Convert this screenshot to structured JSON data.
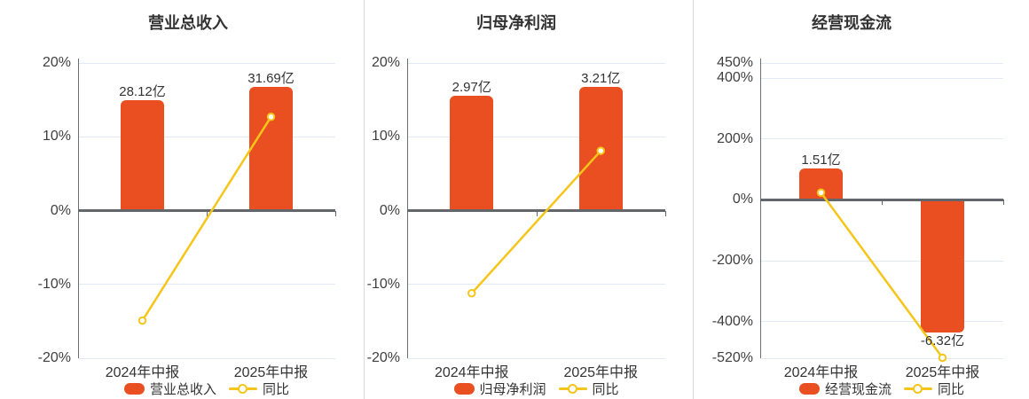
{
  "chart_data": [
    {
      "type": "bar+line",
      "title": "营业总收入",
      "categories": [
        "2024年中报",
        "2025年中报"
      ],
      "series": [
        {
          "name": "营业总收入",
          "type": "bar",
          "unit": "亿",
          "values": [
            28.12,
            31.69
          ],
          "labels": [
            "28.12亿",
            "31.69亿"
          ]
        },
        {
          "name": "同比",
          "type": "line",
          "unit": "%",
          "values": [
            -14.9,
            12.7
          ]
        }
      ],
      "y_axis": {
        "min": -20,
        "max": 20,
        "ticks": [
          20,
          10,
          0,
          -10,
          -20
        ],
        "tick_labels": [
          "20%",
          "10%",
          "0%",
          "-10%",
          "-20%"
        ]
      },
      "legend": [
        "营业总收入",
        "同比"
      ],
      "grid": true,
      "legend_position": "bottom"
    },
    {
      "type": "bar+line",
      "title": "归母净利润",
      "categories": [
        "2024年中报",
        "2025年中报"
      ],
      "series": [
        {
          "name": "归母净利润",
          "type": "bar",
          "unit": "亿",
          "values": [
            2.97,
            3.21
          ],
          "labels": [
            "2.97亿",
            "3.21亿"
          ]
        },
        {
          "name": "同比",
          "type": "line",
          "unit": "%",
          "values": [
            -11.2,
            8.1
          ]
        }
      ],
      "y_axis": {
        "min": -20,
        "max": 20,
        "ticks": [
          20,
          10,
          0,
          -10,
          -20
        ],
        "tick_labels": [
          "20%",
          "10%",
          "0%",
          "-10%",
          "-20%"
        ]
      },
      "legend": [
        "归母净利润",
        "同比"
      ],
      "grid": true,
      "legend_position": "bottom"
    },
    {
      "type": "bar+line",
      "title": "经营现金流",
      "categories": [
        "2024年中报",
        "2025年中报"
      ],
      "series": [
        {
          "name": "经营现金流",
          "type": "bar",
          "unit": "亿",
          "values": [
            1.51,
            -6.32
          ],
          "labels": [
            "1.51亿",
            "-6.32亿"
          ]
        },
        {
          "name": "同比",
          "type": "line",
          "unit": "%",
          "values": [
            24.0,
            -518.5
          ]
        }
      ],
      "y_axis": {
        "min": -520,
        "max": 450,
        "ticks": [
          450,
          400,
          200,
          0,
          -200,
          -400,
          -520
        ],
        "tick_labels": [
          "450%",
          "400%",
          "200%",
          "0%",
          "-200%",
          "-400%",
          "-520%"
        ]
      },
      "legend": [
        "经营现金流",
        "同比"
      ],
      "grid": true,
      "legend_position": "bottom"
    }
  ],
  "colors": {
    "bar": "#e94f20",
    "line": "#f5c51a",
    "title_text": "#333333",
    "axis_text": "#3f3f3f",
    "value_text": "#333333",
    "zero_line": "#63666b",
    "grid_line": "#e2e9f4",
    "y_axis_line": "#6a6e74",
    "divider": "#d9d9d9",
    "marker_fill": "#ffffff"
  }
}
